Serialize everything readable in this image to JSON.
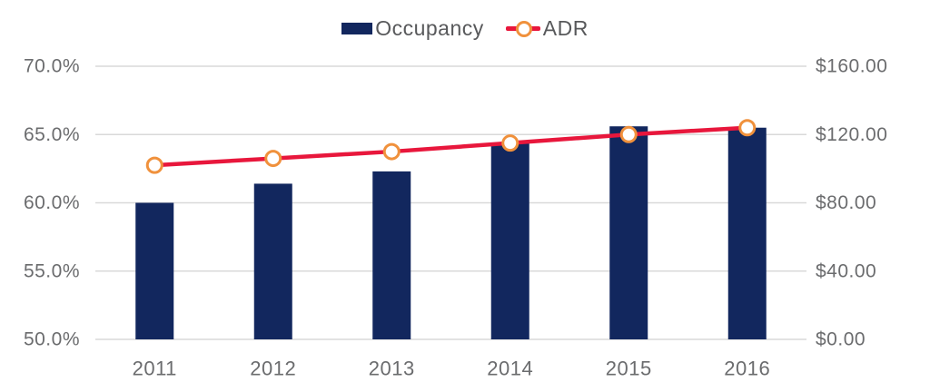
{
  "legend": {
    "occupancy_label": "Occupancy",
    "adr_label": "ADR"
  },
  "colors": {
    "bar_navy": "#12275e",
    "line_red": "#e8173c",
    "marker_orange": "#f0913c",
    "marker_fill": "#ffffff",
    "grid_gray": "#d9d9d9",
    "axis_text_gray": "#6b6c6e",
    "legend_text_gray": "#58595b",
    "background": "#ffffff"
  },
  "chart_data": {
    "type": "combo-bar-line",
    "categories": [
      "2011",
      "2012",
      "2013",
      "2014",
      "2015",
      "2016"
    ],
    "series": [
      {
        "name": "Occupancy",
        "type": "bar",
        "axis": "left",
        "unit": "percent",
        "values": [
          60.0,
          61.4,
          62.3,
          64.4,
          65.6,
          65.5
        ]
      },
      {
        "name": "ADR",
        "type": "line",
        "axis": "right",
        "unit": "usd",
        "values": [
          102,
          106,
          110,
          115,
          120,
          124
        ]
      }
    ],
    "left_axis": {
      "min": 50,
      "max": 70,
      "tick_step": 5,
      "tick_labels": [
        "50.0%",
        "55.0%",
        "60.0%",
        "65.0%",
        "70.0%"
      ]
    },
    "right_axis": {
      "min": 0,
      "max": 160,
      "tick_step": 40,
      "tick_labels": [
        "$0.00",
        "$40.00",
        "$80.00",
        "$120.00",
        "$160.00"
      ]
    },
    "legend_position": "top-center",
    "grid": "horizontal-only",
    "title": "",
    "xlabel": "",
    "ylabel_left": "",
    "ylabel_right": ""
  }
}
